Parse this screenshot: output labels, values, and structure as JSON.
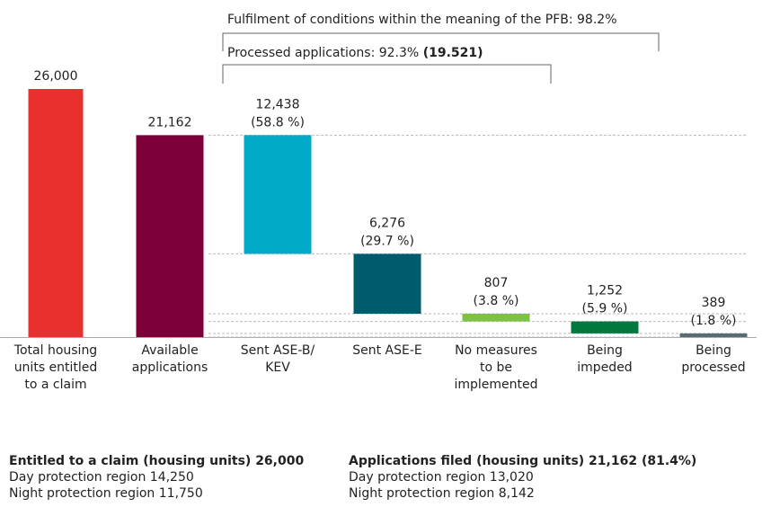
{
  "chart_data": {
    "type": "waterfall",
    "annotations": [
      {
        "text": "Fulfilment of conditions within the meaning of the PFB: 98.2%"
      },
      {
        "text": "Processed applications: 92.3%",
        "bold": "(19.521)"
      }
    ],
    "categories": [
      [
        "Total housing",
        "units entitled",
        "to a claim"
      ],
      [
        "Available",
        "applications"
      ],
      [
        "Sent ASE-B/",
        "KEV"
      ],
      [
        "Sent ASE-E"
      ],
      [
        "No measures",
        "to be",
        "implemented"
      ],
      [
        "Being",
        "impeded"
      ],
      [
        "Being",
        "processed"
      ]
    ],
    "values": [
      26000,
      21162,
      12438,
      6276,
      807,
      1252,
      389
    ],
    "value_labels": [
      "26,000",
      "21,162",
      "12,438",
      "6,276",
      "807",
      "1,252",
      "389"
    ],
    "percent_labels": [
      null,
      null,
      "(58.8 %)",
      "(29.7 %)",
      "(3.8 %)",
      "(5.9 %)",
      "(1.8 %)"
    ],
    "measure": [
      "total",
      "total",
      "decrease",
      "decrease",
      "decrease",
      "decrease",
      "decrease"
    ],
    "colors": [
      "#e8312e",
      "#7d0038",
      "#00abc8",
      "#005b6c",
      "#7dc242",
      "#00783e",
      "#5b6b74"
    ],
    "ylim": [
      0,
      26000
    ],
    "dashed_connectors": true,
    "notes": [
      {
        "heading": "Entitled to a claim (housing units) 26,000",
        "lines": [
          "Day protection region 14,250",
          "Night protection region 11,750"
        ]
      },
      {
        "heading": "Applications filed (housing units) 21,162 (81.4%)",
        "lines": [
          "Day protection region 13,020",
          "Night protection region 8,142"
        ]
      }
    ]
  }
}
